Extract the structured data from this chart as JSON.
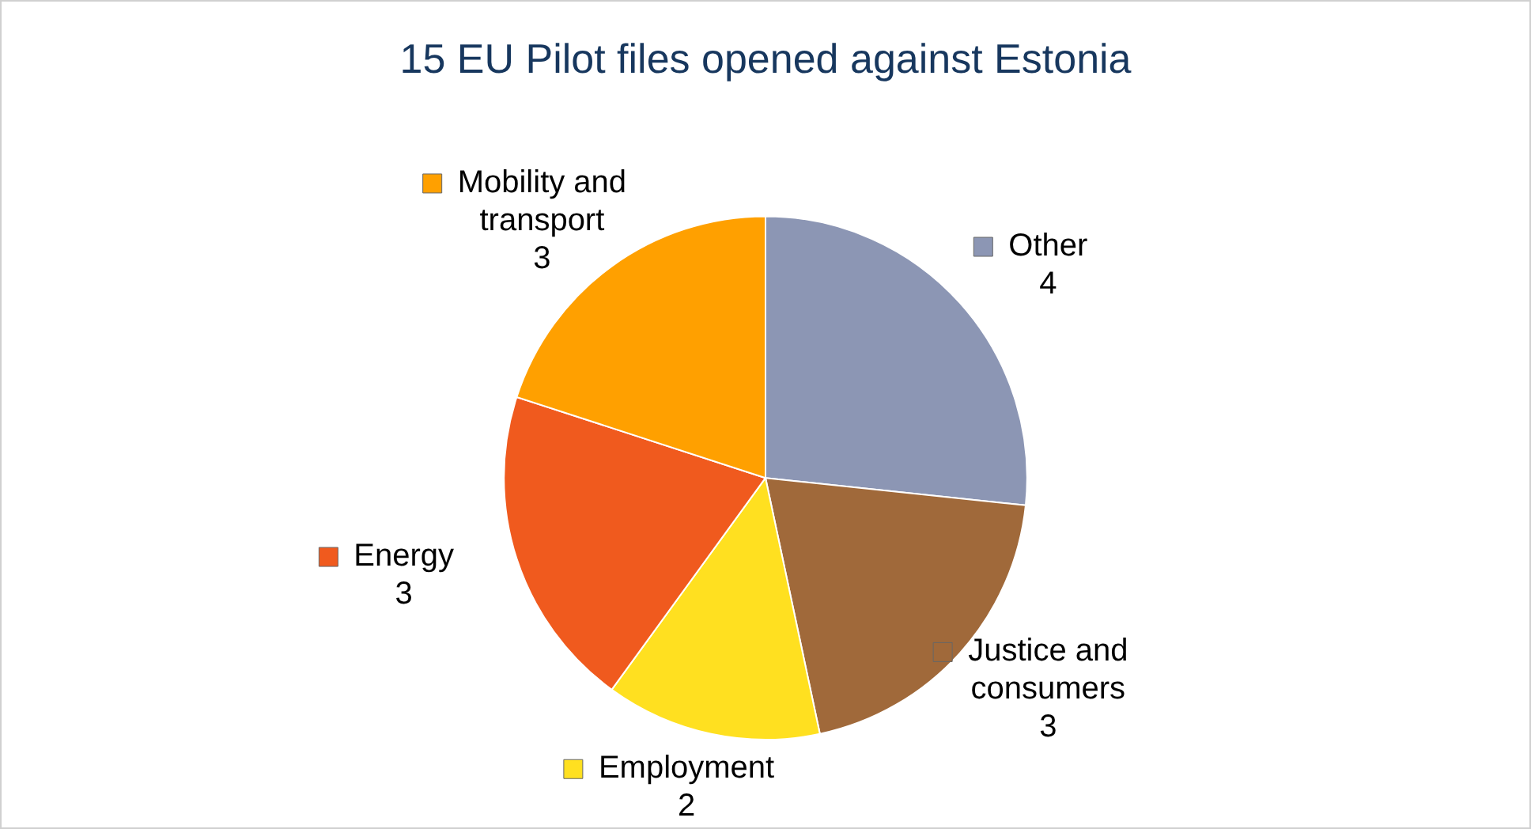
{
  "chart_data": {
    "type": "pie",
    "title": "15 EU Pilot files opened against Estonia",
    "categories": [
      "Other",
      "Justice and consumers",
      "Employment",
      "Energy",
      "Mobility and transport"
    ],
    "values": [
      4,
      3,
      2,
      3,
      3
    ],
    "colors": [
      "#8c96b4",
      "#a0693a",
      "#ffe020",
      "#f05a1e",
      "#ffa000"
    ],
    "data_labels": true,
    "legend": true
  }
}
